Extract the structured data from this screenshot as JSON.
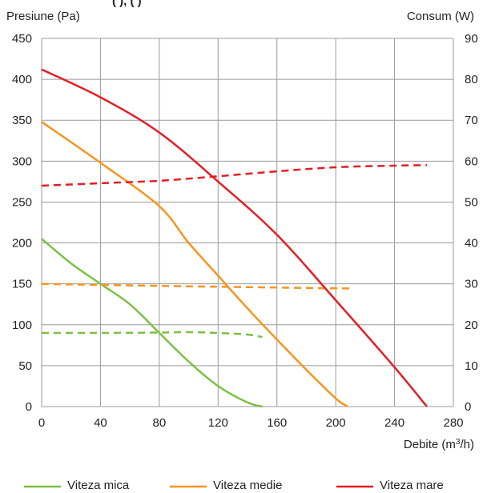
{
  "chart_data": {
    "type": "line",
    "partial_title": "(                ), (              )",
    "y_left_label": "Presiune (Pa)",
    "y_right_label": "Consum (W)",
    "x_label": "Debite (m",
    "x_label_sup": "3",
    "x_label_end": "/h)",
    "x_range": [
      0,
      280
    ],
    "x_ticks": [
      0,
      40,
      80,
      120,
      160,
      200,
      240,
      280
    ],
    "y_left_range": [
      0,
      450
    ],
    "y_left_ticks": [
      0,
      50,
      100,
      150,
      200,
      250,
      300,
      350,
      400,
      450
    ],
    "y_right_range": [
      0,
      90
    ],
    "y_right_ticks": [
      0,
      10,
      20,
      30,
      40,
      50,
      60,
      70,
      80,
      90
    ],
    "grid": true,
    "legend_position": "bottom",
    "series": [
      {
        "name": "Viteza mica",
        "color": "#7ac143",
        "pressure": [
          [
            0,
            205
          ],
          [
            20,
            175
          ],
          [
            40,
            150
          ],
          [
            60,
            125
          ],
          [
            80,
            90
          ],
          [
            100,
            55
          ],
          [
            120,
            25
          ],
          [
            140,
            5
          ],
          [
            150,
            0
          ]
        ],
        "power": [
          [
            0,
            18
          ],
          [
            40,
            18
          ],
          [
            80,
            18.1
          ],
          [
            100,
            18.2
          ],
          [
            120,
            18
          ],
          [
            140,
            17.6
          ],
          [
            150,
            17
          ]
        ]
      },
      {
        "name": "Viteza medie",
        "color": "#f7941d",
        "pressure": [
          [
            0,
            348
          ],
          [
            40,
            298
          ],
          [
            80,
            245
          ],
          [
            100,
            200
          ],
          [
            120,
            160
          ],
          [
            140,
            120
          ],
          [
            160,
            82
          ],
          [
            180,
            45
          ],
          [
            200,
            10
          ],
          [
            208,
            0
          ]
        ],
        "power": [
          [
            0,
            30
          ],
          [
            80,
            29.5
          ],
          [
            120,
            29.3
          ],
          [
            160,
            29.1
          ],
          [
            200,
            28.9
          ],
          [
            210,
            28.9
          ]
        ]
      },
      {
        "name": "Viteza mare",
        "color": "#e31e24",
        "pressure": [
          [
            0,
            412
          ],
          [
            40,
            378
          ],
          [
            80,
            335
          ],
          [
            120,
            275
          ],
          [
            160,
            210
          ],
          [
            200,
            130
          ],
          [
            240,
            48
          ],
          [
            262,
            0
          ]
        ],
        "power": [
          [
            0,
            54
          ],
          [
            40,
            54.6
          ],
          [
            80,
            55.2
          ],
          [
            120,
            56.3
          ],
          [
            160,
            57.5
          ],
          [
            200,
            58.5
          ],
          [
            240,
            58.9
          ],
          [
            262,
            59
          ]
        ]
      }
    ]
  }
}
